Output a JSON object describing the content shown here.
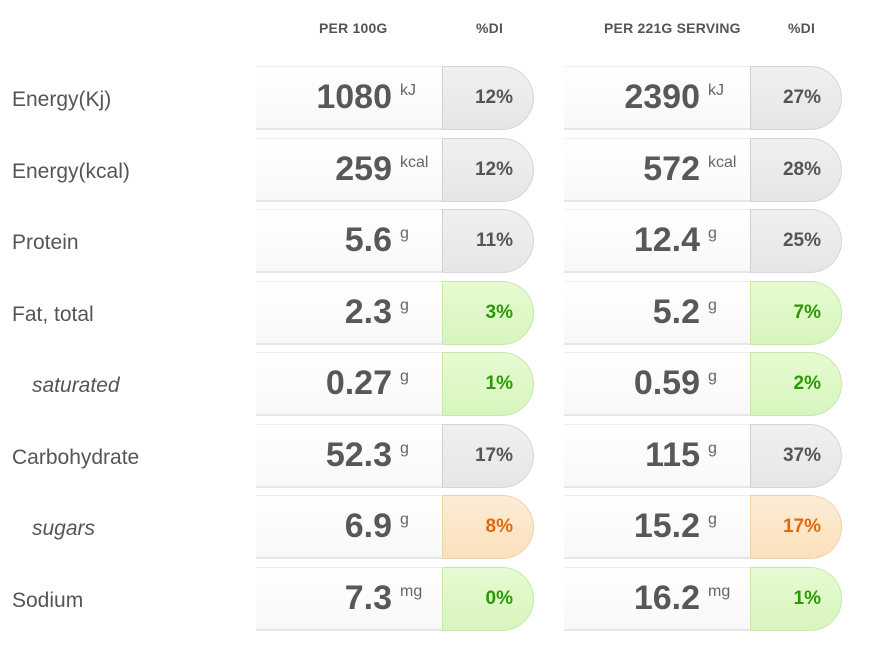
{
  "headers": {
    "per100": "PER 100G",
    "di1": "%DI",
    "perServing": "PER 221G SERVING",
    "di2": "%DI"
  },
  "rows": [
    {
      "label": "Energy(Kj)",
      "sub": false,
      "v1": "1080",
      "u1": "kJ",
      "d1": "12%",
      "c1": "gray",
      "v2": "2390",
      "u2": "kJ",
      "d2": "27%",
      "c2": "gray"
    },
    {
      "label": "Energy(kcal)",
      "sub": false,
      "v1": "259",
      "u1": "kcal",
      "d1": "12%",
      "c1": "gray",
      "v2": "572",
      "u2": "kcal",
      "d2": "28%",
      "c2": "gray"
    },
    {
      "label": "Protein",
      "sub": false,
      "v1": "5.6",
      "u1": "g",
      "d1": "11%",
      "c1": "gray",
      "v2": "12.4",
      "u2": "g",
      "d2": "25%",
      "c2": "gray"
    },
    {
      "label": "Fat, total",
      "sub": false,
      "v1": "2.3",
      "u1": "g",
      "d1": "3%",
      "c1": "green",
      "v2": "5.2",
      "u2": "g",
      "d2": "7%",
      "c2": "green"
    },
    {
      "label": "saturated",
      "sub": true,
      "v1": "0.27",
      "u1": "g",
      "d1": "1%",
      "c1": "green",
      "v2": "0.59",
      "u2": "g",
      "d2": "2%",
      "c2": "green"
    },
    {
      "label": "Carbohydrate",
      "sub": false,
      "v1": "52.3",
      "u1": "g",
      "d1": "17%",
      "c1": "gray",
      "v2": "115",
      "u2": "g",
      "d2": "37%",
      "c2": "gray"
    },
    {
      "label": "sugars",
      "sub": true,
      "v1": "6.9",
      "u1": "g",
      "d1": "8%",
      "c1": "orange",
      "v2": "15.2",
      "u2": "g",
      "d2": "17%",
      "c2": "orange"
    },
    {
      "label": "Sodium",
      "sub": false,
      "v1": "7.3",
      "u1": "mg",
      "d1": "0%",
      "c1": "green",
      "v2": "16.2",
      "u2": "mg",
      "d2": "1%",
      "c2": "green"
    }
  ],
  "colors": {
    "gray": "#e9e9e9",
    "green": "#dcf7c4",
    "orange": "#fce4c3",
    "greenText": "#2a9a00",
    "orangeText": "#e06a0a"
  }
}
